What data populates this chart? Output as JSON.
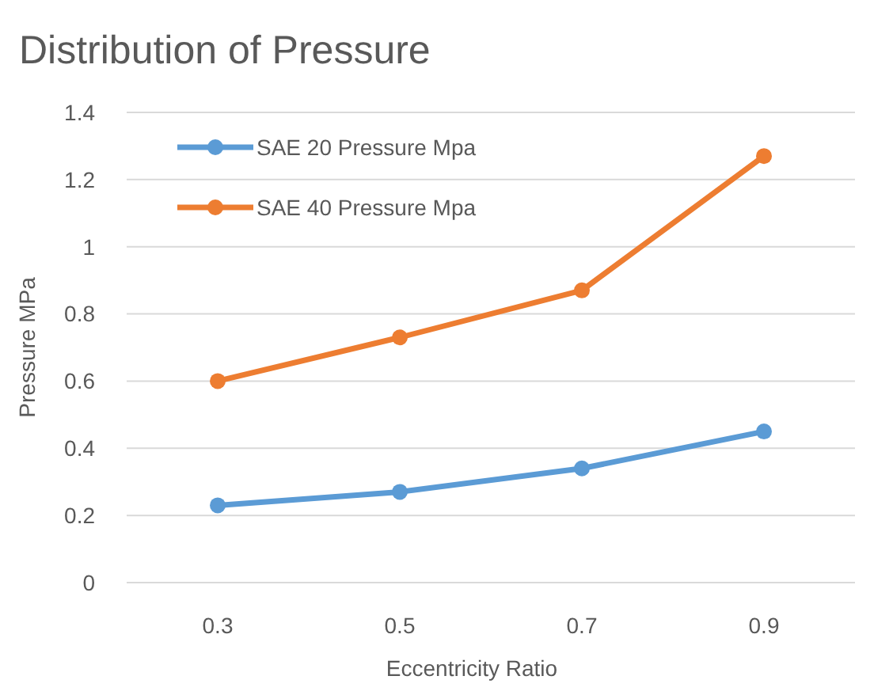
{
  "chart_data": {
    "type": "line",
    "title": "Distribution of Pressure",
    "xlabel": "Eccentricity Ratio",
    "ylabel": "Pressure MPa",
    "categories": [
      "0.3",
      "0.5",
      "0.7",
      "0.9"
    ],
    "series": [
      {
        "name": "SAE 20 Pressure Mpa",
        "color": "#5b9bd5",
        "values": [
          0.23,
          0.27,
          0.34,
          0.45
        ]
      },
      {
        "name": "SAE 40 Pressure Mpa",
        "color": "#ed7d31",
        "values": [
          0.6,
          0.73,
          0.87,
          1.27
        ]
      }
    ],
    "ylim": [
      0,
      1.4
    ],
    "yticks": [
      0,
      0.2,
      0.4,
      0.6,
      0.8,
      {
        "value": 1,
        "label": "1"
      },
      1.2,
      1.4
    ],
    "grid": "y",
    "legend": "top left",
    "marker": "circle",
    "line_style": "solid"
  }
}
